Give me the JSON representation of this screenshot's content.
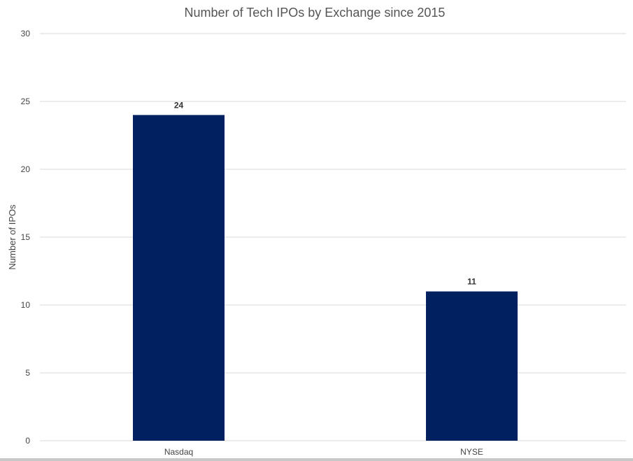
{
  "chart_data": {
    "type": "bar",
    "title": "Number of Tech IPOs by Exchange since 2015",
    "xlabel": "",
    "ylabel": "Number of IPOs",
    "categories": [
      "Nasdaq",
      "NYSE"
    ],
    "values": [
      24,
      11
    ],
    "data_labels": [
      "24",
      "11"
    ],
    "ylim": [
      0,
      30
    ],
    "yticks": [
      0,
      5,
      10,
      15,
      20,
      25,
      30
    ],
    "grid": true,
    "legend": "none",
    "bar_color": "#002060",
    "grid_color": "#d9d9d9"
  }
}
